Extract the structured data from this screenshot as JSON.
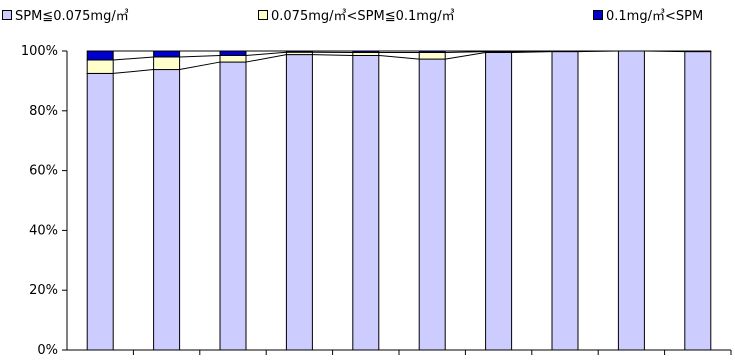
{
  "chart_data": {
    "type": "bar",
    "stacked": true,
    "categories": [
      "",
      "",
      "",
      "",
      "",
      "",
      "",
      "",
      "",
      ""
    ],
    "series": [
      {
        "name": "SPM≦0.075mg/㎥",
        "color": "#ccccff",
        "values": [
          92.5,
          93.8,
          96.3,
          98.8,
          98.5,
          97.3,
          99.5,
          99.8,
          100,
          99.8
        ]
      },
      {
        "name": "0.075mg/㎥<SPM≦0.1mg/㎥",
        "color": "#ffffcc",
        "values": [
          4.5,
          4.2,
          2.2,
          0.8,
          1.0,
          2.2,
          0.3,
          0.2,
          0,
          0.2
        ]
      },
      {
        "name": "0.1mg/㎥<SPM",
        "color": "#0000cc",
        "values": [
          3.0,
          2.0,
          1.5,
          0.4,
          0.5,
          0.5,
          0.2,
          0.0,
          0,
          0.0
        ]
      }
    ],
    "ylim": [
      0,
      100
    ],
    "yticks": [
      "0%",
      "20%",
      "40%",
      "60%",
      "80%",
      "100%"
    ],
    "xlabel": "",
    "ylabel": "",
    "legend_position": "top",
    "grid": false
  }
}
